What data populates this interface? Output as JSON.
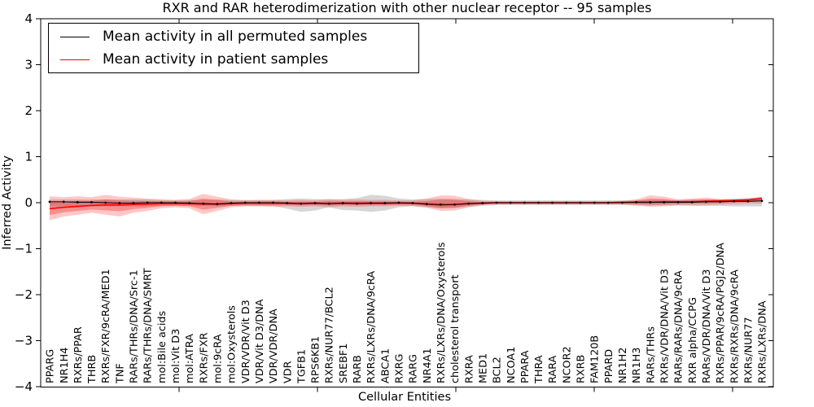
{
  "title": "RXR and RAR heterodimerization with other nuclear receptor -- 95 samples",
  "axes": {
    "x_label": "Cellular Entities",
    "y_label": "Inferred Activity",
    "y_ticks": [
      -4,
      -3,
      -2,
      -1,
      0,
      1,
      2,
      3,
      4
    ],
    "y_min": -4,
    "y_max": 4
  },
  "legend": {
    "items": [
      {
        "label": "Mean activity in all permuted samples",
        "color": "#000000"
      },
      {
        "label": "Mean activity in patient samples",
        "color": "#ff0000"
      }
    ]
  },
  "colors": {
    "permuted_line": "#000000",
    "patient_line": "#ff0000",
    "permuted_band": "rgba(0,0,0,0.16)",
    "patient_band_outer": "rgba(255,30,30,0.25)",
    "patient_band_inner": "rgba(230,0,0,0.28)",
    "frame": "#000000"
  },
  "chart_data": {
    "type": "line",
    "title": "RXR and RAR heterodimerization with other nuclear receptor -- 95 samples",
    "xlabel": "Cellular Entities",
    "ylabel": "Inferred Activity",
    "ylim": [
      -4,
      4
    ],
    "grid": false,
    "legend_position": "upper left",
    "categories": [
      "PPARG",
      "NR1H4",
      "RXRs/PPAR",
      "THRB",
      "RXRs/FXR/9cRA/MED1",
      "TNF",
      "RARs/THRs/DNA/Src-1",
      "RARs/THRs/DNA/SMRT",
      "mol:Bile acids",
      "mol:Vit D3",
      "mol:ATRA",
      "RXRs/FXR",
      "mol:9cRA",
      "mol:Oxysterols",
      "VDR/VDR/Vit D3",
      "VDR/Vit D3/DNA",
      "VDR/VDR/DNA",
      "VDR",
      "TGFB1",
      "RPS6KB1",
      "RXRs/NUR77/BCL2",
      "SREBF1",
      "RARB",
      "RXRs/LXRs/DNA/9cRA",
      "ABCA1",
      "RXRG",
      "RARG",
      "NR4A1",
      "RXRs/LXRs/DNA/Oxysterols",
      "cholesterol transport",
      "RXRA",
      "MED1",
      "BCL2",
      "NCOA1",
      "PPARA",
      "THRA",
      "RARA",
      "NCOR2",
      "RXRB",
      "FAM120B",
      "PPARD",
      "NR1H2",
      "NR1H3",
      "RARs/THRs",
      "RXRs/VDR/DNA/Vit D3",
      "RARs/RARs/DNA/9cRA",
      "RXR alpha/CCPG",
      "RARs/VDR/DNA/Vit D3",
      "RXRs/PPAR/9cRA/PGJ2/DNA",
      "RXRs/RXRs/DNA/9cRA",
      "RXRs/NUR77",
      "RXRs/LXRs/DNA"
    ],
    "series": [
      {
        "name": "Mean activity in all permuted samples",
        "kind": "line",
        "color": "#000000",
        "values": [
          0.02,
          0.02,
          0.01,
          0.01,
          0.0,
          -0.01,
          -0.01,
          0.0,
          0.0,
          0.0,
          -0.01,
          -0.02,
          -0.03,
          -0.01,
          0.0,
          0.0,
          0.0,
          -0.01,
          -0.02,
          -0.01,
          -0.02,
          -0.01,
          -0.02,
          -0.01,
          -0.01,
          0.0,
          -0.01,
          -0.03,
          -0.04,
          -0.04,
          -0.02,
          -0.01,
          0.0,
          0.0,
          0.0,
          0.0,
          0.0,
          0.0,
          0.0,
          0.0,
          0.0,
          0.0,
          0.01,
          0.01,
          0.01,
          0.01,
          0.01,
          0.02,
          0.02,
          0.03,
          0.03,
          0.04
        ]
      },
      {
        "name": "Mean activity in patient samples",
        "kind": "line",
        "color": "#ff0000",
        "values": [
          -0.13,
          -0.1,
          -0.08,
          -0.06,
          -0.05,
          -0.05,
          -0.04,
          -0.03,
          -0.02,
          -0.02,
          -0.02,
          -0.03,
          -0.03,
          -0.02,
          -0.01,
          -0.01,
          -0.01,
          -0.01,
          -0.02,
          -0.01,
          -0.02,
          -0.01,
          -0.01,
          -0.01,
          -0.01,
          -0.01,
          -0.01,
          -0.03,
          -0.05,
          -0.04,
          -0.02,
          -0.01,
          0.0,
          0.0,
          0.0,
          0.0,
          0.0,
          0.0,
          0.0,
          0.0,
          0.0,
          0.01,
          0.01,
          0.01,
          0.02,
          0.02,
          0.02,
          0.03,
          0.04,
          0.05,
          0.06,
          0.09
        ]
      },
      {
        "name": "Permuted samples std band",
        "kind": "band",
        "upper": [
          0.07,
          0.07,
          0.07,
          0.07,
          0.07,
          0.07,
          0.07,
          0.07,
          0.06,
          0.06,
          0.06,
          0.06,
          0.07,
          0.06,
          0.06,
          0.06,
          0.06,
          0.08,
          0.09,
          0.08,
          0.07,
          0.08,
          0.1,
          0.17,
          0.15,
          0.09,
          0.07,
          0.08,
          0.09,
          0.08,
          0.07,
          0.06,
          0.05,
          0.05,
          0.05,
          0.05,
          0.05,
          0.05,
          0.05,
          0.05,
          0.05,
          0.05,
          0.06,
          0.06,
          0.06,
          0.06,
          0.07,
          0.07,
          0.07,
          0.09,
          0.1,
          0.12
        ],
        "lower": [
          -0.08,
          -0.08,
          -0.08,
          -0.08,
          -0.08,
          -0.08,
          -0.08,
          -0.08,
          -0.07,
          -0.07,
          -0.07,
          -0.07,
          -0.08,
          -0.07,
          -0.07,
          -0.07,
          -0.07,
          -0.13,
          -0.2,
          -0.17,
          -0.1,
          -0.16,
          -0.17,
          -0.2,
          -0.17,
          -0.1,
          -0.08,
          -0.1,
          -0.12,
          -0.11,
          -0.09,
          -0.07,
          -0.05,
          -0.05,
          -0.05,
          -0.05,
          -0.05,
          -0.05,
          -0.05,
          -0.05,
          -0.05,
          -0.05,
          -0.06,
          -0.06,
          -0.06,
          -0.06,
          -0.07,
          -0.07,
          -0.07,
          -0.08,
          -0.08,
          -0.08
        ]
      },
      {
        "name": "Patient samples std band",
        "kind": "band",
        "upper": [
          0.14,
          0.12,
          0.14,
          0.12,
          0.17,
          0.13,
          0.11,
          0.09,
          0.07,
          0.06,
          0.08,
          0.19,
          0.13,
          0.07,
          0.05,
          0.06,
          0.06,
          0.05,
          0.06,
          0.05,
          0.08,
          0.06,
          0.07,
          0.06,
          0.06,
          0.05,
          0.05,
          0.09,
          0.16,
          0.15,
          0.08,
          0.04,
          0.03,
          0.03,
          0.03,
          0.03,
          0.03,
          0.03,
          0.03,
          0.03,
          0.03,
          0.04,
          0.07,
          0.16,
          0.13,
          0.07,
          0.09,
          0.11,
          0.08,
          0.07,
          0.09,
          0.13
        ],
        "lower": [
          -0.38,
          -0.3,
          -0.26,
          -0.22,
          -0.26,
          -0.3,
          -0.22,
          -0.18,
          -0.12,
          -0.1,
          -0.12,
          -0.25,
          -0.18,
          -0.1,
          -0.08,
          -0.08,
          -0.09,
          -0.08,
          -0.09,
          -0.08,
          -0.1,
          -0.08,
          -0.09,
          -0.08,
          -0.08,
          -0.07,
          -0.07,
          -0.11,
          -0.18,
          -0.17,
          -0.1,
          -0.05,
          -0.04,
          -0.04,
          -0.04,
          -0.04,
          -0.04,
          -0.04,
          -0.04,
          -0.04,
          -0.04,
          -0.04,
          -0.06,
          -0.09,
          -0.08,
          -0.06,
          -0.05,
          -0.05,
          -0.04,
          -0.03,
          -0.02,
          -0.02
        ]
      }
    ]
  }
}
